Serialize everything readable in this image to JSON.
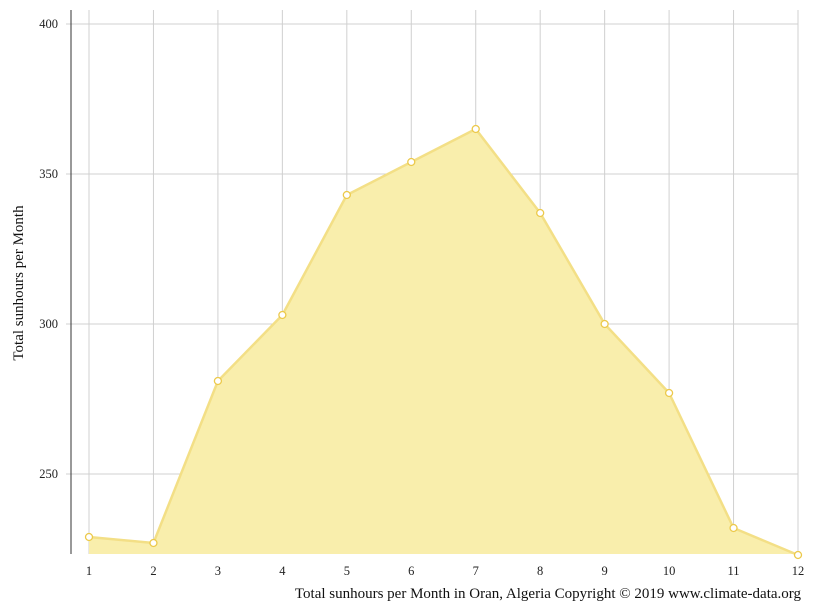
{
  "chart_data": {
    "type": "area",
    "x": [
      1,
      2,
      3,
      4,
      5,
      6,
      7,
      8,
      9,
      10,
      11,
      12
    ],
    "y": [
      229,
      227,
      281,
      303,
      343,
      354,
      365,
      337,
      300,
      277,
      232,
      223
    ],
    "ylabel": "Total sunhours per Month",
    "caption": "Total sunhours per Month in Oran, Algeria Copyright © 2019 www.climate-data.org",
    "y_ticks": [
      250,
      300,
      350,
      400
    ],
    "x_ticks": [
      1,
      2,
      3,
      4,
      5,
      6,
      7,
      8,
      9,
      10,
      11,
      12
    ],
    "ylim": [
      223,
      405
    ],
    "xlim": [
      1,
      12
    ],
    "grid": true,
    "colors": {
      "fill": "#f9eeac",
      "line": "#f3df86",
      "marker_stroke": "#ecc94b",
      "marker_fill": "#ffffff",
      "grid": "#d0d0d0",
      "axis": "#333333"
    }
  }
}
